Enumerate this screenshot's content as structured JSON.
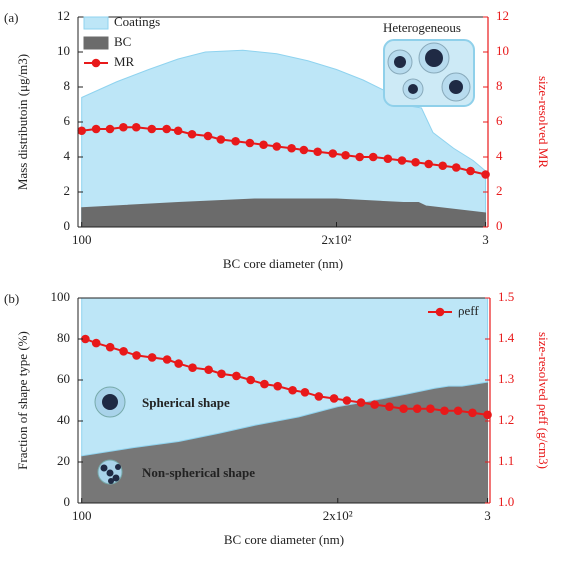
{
  "chart_data": [
    {
      "type": "area",
      "panel_label": "(a)",
      "inset_label": "Heterogeneous",
      "xlabel": "BC core diameter (nm)",
      "ylabel": "Mass distributoin (μg/m3)",
      "y2label": "size-resolved MR",
      "xscale": "log",
      "xlim": [
        99,
        302
      ],
      "xticks": [
        100,
        {
          "value": 200,
          "label": "2x10²"
        },
        {
          "value": 300,
          "label": "3"
        }
      ],
      "ylim": [
        0,
        12
      ],
      "yticks": [
        0,
        2,
        4,
        6,
        8,
        10,
        12
      ],
      "y2lim": [
        0,
        12
      ],
      "y2ticks": [
        0,
        2,
        4,
        6,
        8,
        10,
        12
      ],
      "legend": "upper left",
      "series": [
        {
          "name": "Coatings",
          "type": "area",
          "color": "#bde6f7",
          "x": [
            100,
            110,
            120,
            130,
            140,
            155,
            170,
            185,
            200,
            215,
            230,
            245,
            252,
            260,
            275,
            290,
            300
          ],
          "values": [
            7.4,
            8.3,
            9.0,
            9.6,
            10.0,
            10.1,
            9.9,
            9.5,
            9.0,
            8.4,
            7.7,
            6.9,
            6.8,
            5.4,
            4.5,
            3.8,
            3.2
          ]
        },
        {
          "name": "BC",
          "type": "area",
          "color": "#6b6b6b",
          "x": [
            100,
            130,
            160,
            200,
            240,
            250,
            255,
            300
          ],
          "values": [
            1.1,
            1.4,
            1.6,
            1.6,
            1.4,
            1.4,
            1.2,
            0.8
          ]
        },
        {
          "name": "MR",
          "type": "line",
          "axis": "y2",
          "color": "#e8191a",
          "x": [
            100,
            104,
            108,
            112,
            116,
            121,
            126,
            130,
            135,
            141,
            146,
            152,
            158,
            164,
            170,
            177,
            183,
            190,
            198,
            205,
            213,
            221,
            230,
            239,
            248,
            257,
            267,
            277,
            288,
            300
          ],
          "values": [
            5.5,
            5.6,
            5.6,
            5.7,
            5.7,
            5.6,
            5.6,
            5.5,
            5.3,
            5.2,
            5.0,
            4.9,
            4.8,
            4.7,
            4.6,
            4.5,
            4.4,
            4.3,
            4.2,
            4.1,
            4.0,
            4.0,
            3.9,
            3.8,
            3.7,
            3.6,
            3.5,
            3.4,
            3.2,
            3.0
          ]
        }
      ]
    },
    {
      "type": "area",
      "panel_label": "(b)",
      "xlabel": "BC core diameter (nm)",
      "ylabel": "Fraction of shape type (%)",
      "y2label": "size-resolved ρeff (g/cm3)",
      "xscale": "log",
      "xlim": [
        99,
        302
      ],
      "xticks": [
        100,
        {
          "value": 200,
          "label": "2x10²"
        },
        {
          "value": 300,
          "label": "3"
        }
      ],
      "ylim": [
        0,
        100
      ],
      "yticks": [
        0,
        20,
        40,
        60,
        80,
        100
      ],
      "y2lim": [
        1,
        1.5
      ],
      "y2ticks": [
        {
          "value": 1,
          "label": "1.0"
        },
        1.1,
        1.2,
        1.3,
        1.4,
        1.5
      ],
      "legend": "upper right",
      "stacked": true,
      "area_labels": true,
      "series": [
        {
          "name": "Non-spherical shape",
          "type": "area",
          "color": "#777777",
          "x": [
            100,
            115,
            130,
            145,
            160,
            180,
            200,
            220,
            240,
            260,
            270,
            280,
            290,
            300
          ],
          "values": [
            23,
            27,
            30,
            34,
            38,
            42,
            47,
            50,
            53,
            56,
            57,
            57,
            58,
            59
          ]
        },
        {
          "name": "Spherical shape",
          "type": "area",
          "color": "#bde6f7",
          "x": [
            100,
            115,
            130,
            145,
            160,
            180,
            200,
            220,
            240,
            260,
            270,
            280,
            290,
            300
          ],
          "values": [
            77,
            73,
            70,
            66,
            62,
            58,
            53,
            50,
            47,
            44,
            43,
            43,
            42,
            41
          ]
        },
        {
          "name": "ρeff",
          "type": "line",
          "axis": "y2",
          "color": "#e8191a",
          "x": [
            101,
            104,
            108,
            112,
            116,
            121,
            126,
            130,
            135,
            141,
            146,
            152,
            158,
            164,
            170,
            177,
            183,
            190,
            198,
            205,
            213,
            221,
            230,
            239,
            248,
            257,
            267,
            277,
            288,
            300
          ],
          "values": [
            1.4,
            1.39,
            1.38,
            1.37,
            1.36,
            1.355,
            1.35,
            1.34,
            1.33,
            1.325,
            1.315,
            1.31,
            1.3,
            1.29,
            1.285,
            1.275,
            1.27,
            1.26,
            1.255,
            1.25,
            1.245,
            1.24,
            1.235,
            1.23,
            1.23,
            1.23,
            1.225,
            1.225,
            1.22,
            1.215
          ]
        }
      ]
    }
  ]
}
